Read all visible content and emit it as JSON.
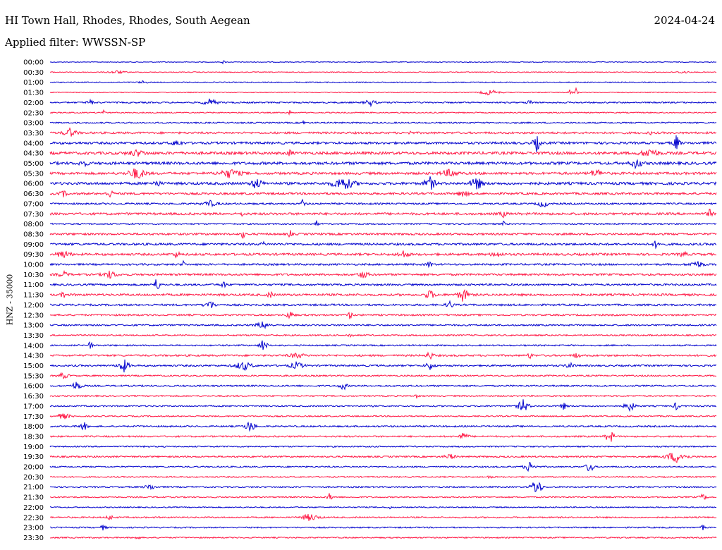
{
  "header": {
    "station": "HI Town Hall, Rhodes, Rhodes, South Aegean",
    "date": "2024-04-24",
    "filter": "Applied filter: WWSSN-SP"
  },
  "axis": {
    "ylabel": "HNZ - 35000"
  },
  "colors": {
    "even": "#0000cc",
    "odd": "#ff1744"
  },
  "chart_data": {
    "type": "line",
    "title": "HI Town Hall, Rhodes, Rhodes, South Aegean",
    "ylabel": "HNZ - 35000",
    "tick_labels": [
      "00:00",
      "00:30",
      "01:00",
      "01:30",
      "02:00",
      "02:30",
      "03:00",
      "03:30",
      "04:00",
      "04:30",
      "05:00",
      "05:30",
      "06:00",
      "06:30",
      "07:00",
      "07:30",
      "08:00",
      "08:30",
      "09:00",
      "09:30",
      "10:00",
      "10:30",
      "11:00",
      "11:30",
      "12:00",
      "12:30",
      "13:00",
      "13:30",
      "14:00",
      "14:30",
      "15:00",
      "15:30",
      "16:00",
      "16:30",
      "17:00",
      "17:30",
      "18:00",
      "18:30",
      "19:00",
      "19:30",
      "20:00",
      "20:30",
      "21:00",
      "21:30",
      "22:00",
      "22:30",
      "23:00",
      "23:30"
    ],
    "noise": [
      0.5,
      0.6,
      0.7,
      0.6,
      1.0,
      0.8,
      1.0,
      1.4,
      1.6,
      1.9,
      1.9,
      1.7,
      1.8,
      1.5,
      1.2,
      1.6,
      1.0,
      1.4,
      1.5,
      1.6,
      1.3,
      1.4,
      1.3,
      1.5,
      1.3,
      1.2,
      1.1,
      1.0,
      1.0,
      1.3,
      1.2,
      1.0,
      1.1,
      1.0,
      1.0,
      0.9,
      1.1,
      1.1,
      0.9,
      1.1,
      1.0,
      0.9,
      1.0,
      0.9,
      0.8,
      1.0,
      0.9,
      0.9
    ],
    "events": [
      [
        [
          0.26,
          3,
          5
        ]
      ],
      [
        [
          0.1,
          2,
          25
        ],
        [
          0.95,
          2,
          15
        ]
      ],
      [
        [
          0.14,
          2,
          12
        ]
      ],
      [
        [
          0.66,
          4,
          25
        ],
        [
          0.78,
          6,
          6
        ],
        [
          0.79,
          9,
          4
        ]
      ],
      [
        [
          0.06,
          4,
          10
        ],
        [
          0.24,
          5,
          20
        ],
        [
          0.48,
          5,
          15
        ],
        [
          0.72,
          3,
          10
        ]
      ],
      [
        [
          0.08,
          6,
          4
        ],
        [
          0.36,
          3,
          6
        ]
      ],
      [
        [
          0.38,
          4,
          4
        ]
      ],
      [
        [
          0.03,
          6,
          18
        ],
        [
          0.54,
          3,
          5
        ],
        [
          0.9,
          3,
          5
        ]
      ],
      [
        [
          0.73,
          12,
          10
        ],
        [
          0.94,
          11,
          10
        ],
        [
          0.19,
          4,
          15
        ]
      ],
      [
        [
          0.36,
          6,
          5
        ],
        [
          0.9,
          6,
          25
        ],
        [
          0.13,
          4,
          25
        ]
      ],
      [
        [
          0.05,
          4,
          12
        ],
        [
          0.88,
          7,
          15
        ]
      ],
      [
        [
          0.13,
          8,
          25
        ],
        [
          0.27,
          6,
          30
        ],
        [
          0.6,
          5,
          25
        ],
        [
          0.82,
          5,
          20
        ]
      ],
      [
        [
          0.31,
          8,
          15
        ],
        [
          0.44,
          9,
          30
        ],
        [
          0.57,
          10,
          15
        ],
        [
          0.64,
          10,
          15
        ],
        [
          0.16,
          5,
          10
        ]
      ],
      [
        [
          0.02,
          4,
          10
        ],
        [
          0.09,
          5,
          10
        ],
        [
          0.62,
          4,
          15
        ]
      ],
      [
        [
          0.38,
          10,
          5
        ],
        [
          0.24,
          4,
          20
        ],
        [
          0.74,
          5,
          15
        ]
      ],
      [
        [
          0.29,
          5,
          5
        ],
        [
          0.68,
          4,
          10
        ],
        [
          0.99,
          6,
          8
        ]
      ],
      [
        [
          0.4,
          4,
          5
        ],
        [
          0.68,
          4,
          5
        ]
      ],
      [
        [
          0.29,
          8,
          5
        ],
        [
          0.36,
          6,
          5
        ]
      ],
      [
        [
          0.32,
          4,
          5
        ],
        [
          0.91,
          6,
          8
        ]
      ],
      [
        [
          0.02,
          5,
          20
        ],
        [
          0.19,
          4,
          10
        ],
        [
          0.53,
          5,
          15
        ],
        [
          0.67,
          4,
          15
        ],
        [
          0.95,
          4,
          10
        ]
      ],
      [
        [
          0.2,
          5,
          5
        ],
        [
          0.57,
          5,
          8
        ],
        [
          0.97,
          5,
          20
        ]
      ],
      [
        [
          0.02,
          4,
          15
        ],
        [
          0.09,
          5,
          20
        ],
        [
          0.47,
          5,
          15
        ]
      ],
      [
        [
          0.16,
          9,
          10
        ],
        [
          0.26,
          4,
          10
        ]
      ],
      [
        [
          0.02,
          6,
          6
        ],
        [
          0.33,
          5,
          8
        ],
        [
          0.57,
          6,
          15
        ],
        [
          0.62,
          10,
          15
        ]
      ],
      [
        [
          0.24,
          6,
          15
        ],
        [
          0.6,
          5,
          10
        ]
      ],
      [
        [
          0.36,
          6,
          10
        ],
        [
          0.45,
          5,
          8
        ]
      ],
      [
        [
          0.32,
          5,
          20
        ]
      ],
      [
        [
          0.45,
          3,
          8
        ]
      ],
      [
        [
          0.06,
          6,
          8
        ],
        [
          0.32,
          10,
          10
        ]
      ],
      [
        [
          0.37,
          4,
          20
        ],
        [
          0.57,
          6,
          10
        ],
        [
          0.72,
          4,
          8
        ],
        [
          0.79,
          5,
          8
        ]
      ],
      [
        [
          0.11,
          10,
          15
        ],
        [
          0.29,
          6,
          25
        ],
        [
          0.37,
          5,
          20
        ],
        [
          0.57,
          6,
          12
        ],
        [
          0.78,
          6,
          10
        ]
      ],
      [
        [
          0.02,
          4,
          15
        ]
      ],
      [
        [
          0.04,
          6,
          15
        ],
        [
          0.44,
          6,
          10
        ]
      ],
      [
        [
          0.55,
          3,
          5
        ]
      ],
      [
        [
          0.71,
          10,
          15
        ],
        [
          0.77,
          5,
          10
        ],
        [
          0.87,
          7,
          15
        ],
        [
          0.94,
          6,
          8
        ]
      ],
      [
        [
          0.02,
          4,
          20
        ]
      ],
      [
        [
          0.05,
          7,
          10
        ],
        [
          0.3,
          8,
          15
        ]
      ],
      [
        [
          0.62,
          5,
          15
        ],
        [
          0.84,
          10,
          12
        ]
      ],
      [
        [
          0.14,
          3,
          5
        ]
      ],
      [
        [
          0.6,
          4,
          15
        ],
        [
          0.94,
          8,
          30
        ]
      ],
      [
        [
          0.72,
          8,
          15
        ],
        [
          0.81,
          10,
          10
        ]
      ],
      [
        [
          0.66,
          4,
          5
        ]
      ],
      [
        [
          0.73,
          13,
          15
        ],
        [
          0.15,
          4,
          15
        ]
      ],
      [
        [
          0.42,
          6,
          8
        ],
        [
          0.98,
          5,
          10
        ]
      ],
      [
        [
          0.51,
          3,
          5
        ]
      ],
      [
        [
          0.39,
          5,
          25
        ],
        [
          0.09,
          4,
          10
        ]
      ],
      [
        [
          0.08,
          4,
          8
        ],
        [
          0.98,
          4,
          5
        ]
      ],
      [
        [
          0.13,
          3,
          8
        ]
      ]
    ]
  }
}
